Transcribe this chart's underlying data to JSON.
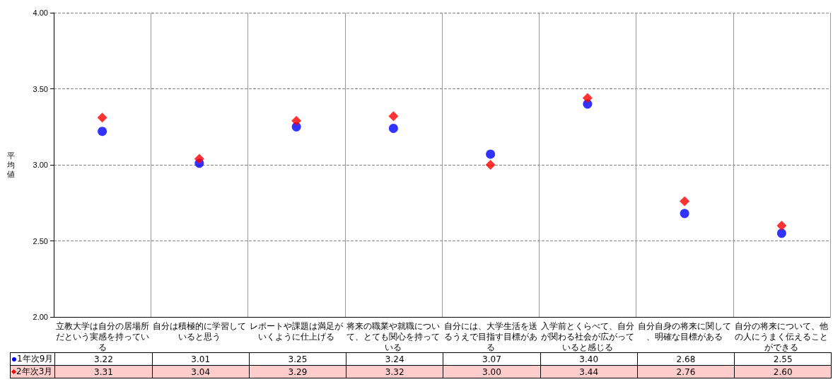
{
  "chart_data": {
    "type": "scatter",
    "ylabel": "平均値",
    "categories": [
      "立教大学は自分の居場所だという実感を持っている",
      "自分は積極的に学習していると思う",
      "レポートや課題は満足がいくように仕上げる",
      "将来の職業や就職について、とても関心を持っている",
      "自分には、大学生活を送るうえで目指す目標がある",
      "入学前とくらべて、自分が関わる社会が広がっていると感じる",
      "自分自身の将来に関して、明確な目標がある",
      "自分の将来について、他の人にうまく伝えることができる"
    ],
    "series": [
      {
        "name": "1年次9月",
        "color": "#0000ff",
        "marker": "circle",
        "values": [
          3.22,
          3.01,
          3.25,
          3.24,
          3.07,
          3.4,
          2.68,
          2.55
        ],
        "value_labels": [
          "3.22",
          "3.01",
          "3.25",
          "3.24",
          "3.07",
          "3.40",
          "2.68",
          "2.55"
        ]
      },
      {
        "name": "2年次3月",
        "color": "#ff0000",
        "marker": "diamond",
        "values": [
          3.31,
          3.04,
          3.29,
          3.32,
          3.0,
          3.44,
          2.76,
          2.6
        ],
        "value_labels": [
          "3.31",
          "3.04",
          "3.29",
          "3.32",
          "3.00",
          "3.44",
          "2.76",
          "2.60"
        ]
      }
    ],
    "ylim": [
      2,
      4
    ],
    "yticks": [
      {
        "value": 2,
        "label": "2.00"
      },
      {
        "value": 2.5,
        "label": "2.50"
      },
      {
        "value": 3,
        "label": "3.00"
      },
      {
        "value": 3.5,
        "label": "3.50"
      },
      {
        "value": 4,
        "label": "4.00"
      }
    ],
    "grid": true,
    "legend": "bottom"
  }
}
